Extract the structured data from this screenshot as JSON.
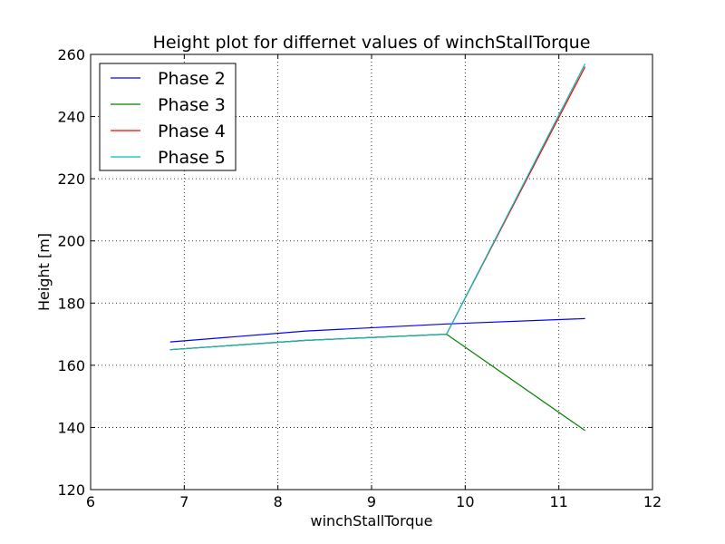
{
  "chart_data": {
    "type": "line",
    "title": "Height plot for differnet values of winchStallTorque",
    "xlabel": "winchStallTorque",
    "ylabel": "Height [m]",
    "xlim": [
      6,
      12
    ],
    "ylim": [
      120,
      260
    ],
    "xticks": [
      "6",
      "7",
      "8",
      "9",
      "10",
      "11",
      "12"
    ],
    "yticks": [
      "120",
      "140",
      "160",
      "180",
      "200",
      "220",
      "240",
      "260"
    ],
    "grid": true,
    "legend_position": "top-left",
    "series": [
      {
        "name": "Phase 2",
        "color": "#0000ff",
        "x": [
          6.85,
          8.3,
          9.8,
          11.28
        ],
        "y": [
          167.5,
          171.0,
          173.3,
          175.0
        ]
      },
      {
        "name": "Phase 3",
        "color": "#008000",
        "x": [
          6.85,
          8.3,
          9.8,
          11.28
        ],
        "y": [
          165.0,
          168.0,
          170.0,
          139.0
        ]
      },
      {
        "name": "Phase 4",
        "color": "#ff0000",
        "x": [
          6.85,
          8.3,
          9.8,
          11.28
        ],
        "y": [
          165.0,
          168.0,
          170.0,
          256.0
        ]
      },
      {
        "name": "Phase 5",
        "color": "#00bfbf",
        "x": [
          6.85,
          8.3,
          9.8,
          11.28
        ],
        "y": [
          165.0,
          168.0,
          170.0,
          257.0
        ]
      }
    ]
  }
}
